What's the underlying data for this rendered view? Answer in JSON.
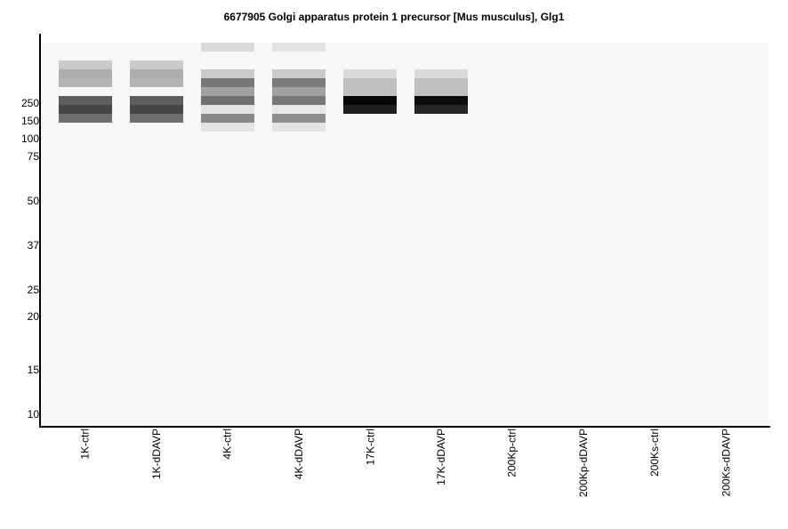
{
  "chart_data": {
    "type": "heatmap",
    "title": "6677905 Golgi apparatus protein 1 precursor [Mus musculus], Glg1",
    "xlabel": "",
    "ylabel": "",
    "y_ticks": [
      "250",
      "150",
      "100",
      "75",
      "50",
      "37",
      "25",
      "20",
      "15",
      "10"
    ],
    "lanes": [
      {
        "label": "1K-ctrl",
        "bands": [
          [
            2,
            0.18
          ],
          [
            3,
            0.3
          ],
          [
            4,
            0.27
          ],
          [
            6,
            0.62
          ],
          [
            7,
            0.72
          ],
          [
            8,
            0.55
          ]
        ]
      },
      {
        "label": "1K-dDAVP",
        "bands": [
          [
            2,
            0.18
          ],
          [
            3,
            0.3
          ],
          [
            4,
            0.27
          ],
          [
            6,
            0.62
          ],
          [
            7,
            0.72
          ],
          [
            8,
            0.55
          ]
        ]
      },
      {
        "label": "4K-ctrl",
        "bands": [
          [
            0,
            0.12
          ],
          [
            3,
            0.18
          ],
          [
            4,
            0.52
          ],
          [
            5,
            0.35
          ],
          [
            6,
            0.55
          ],
          [
            7,
            0.08
          ],
          [
            8,
            0.45
          ],
          [
            9,
            0.08
          ]
        ]
      },
      {
        "label": "4K-dDAVP",
        "bands": [
          [
            0,
            0.08
          ],
          [
            3,
            0.18
          ],
          [
            4,
            0.5
          ],
          [
            5,
            0.35
          ],
          [
            6,
            0.52
          ],
          [
            7,
            0.06
          ],
          [
            8,
            0.42
          ],
          [
            9,
            0.08
          ]
        ]
      },
      {
        "label": "17K-ctrl",
        "bands": [
          [
            3,
            0.12
          ],
          [
            4,
            0.22
          ],
          [
            5,
            0.22
          ],
          [
            6,
            0.98
          ],
          [
            7,
            0.88
          ]
        ]
      },
      {
        "label": "17K-dDAVP",
        "bands": [
          [
            3,
            0.12
          ],
          [
            4,
            0.22
          ],
          [
            5,
            0.22
          ],
          [
            6,
            0.95
          ],
          [
            7,
            0.85
          ]
        ]
      },
      {
        "label": "200Kp-ctrl",
        "bands": []
      },
      {
        "label": "200Kp-dDAVP",
        "bands": []
      },
      {
        "label": "200Ks-ctrl",
        "bands": []
      },
      {
        "label": "200Ks-dDAVP",
        "bands": []
      }
    ]
  }
}
